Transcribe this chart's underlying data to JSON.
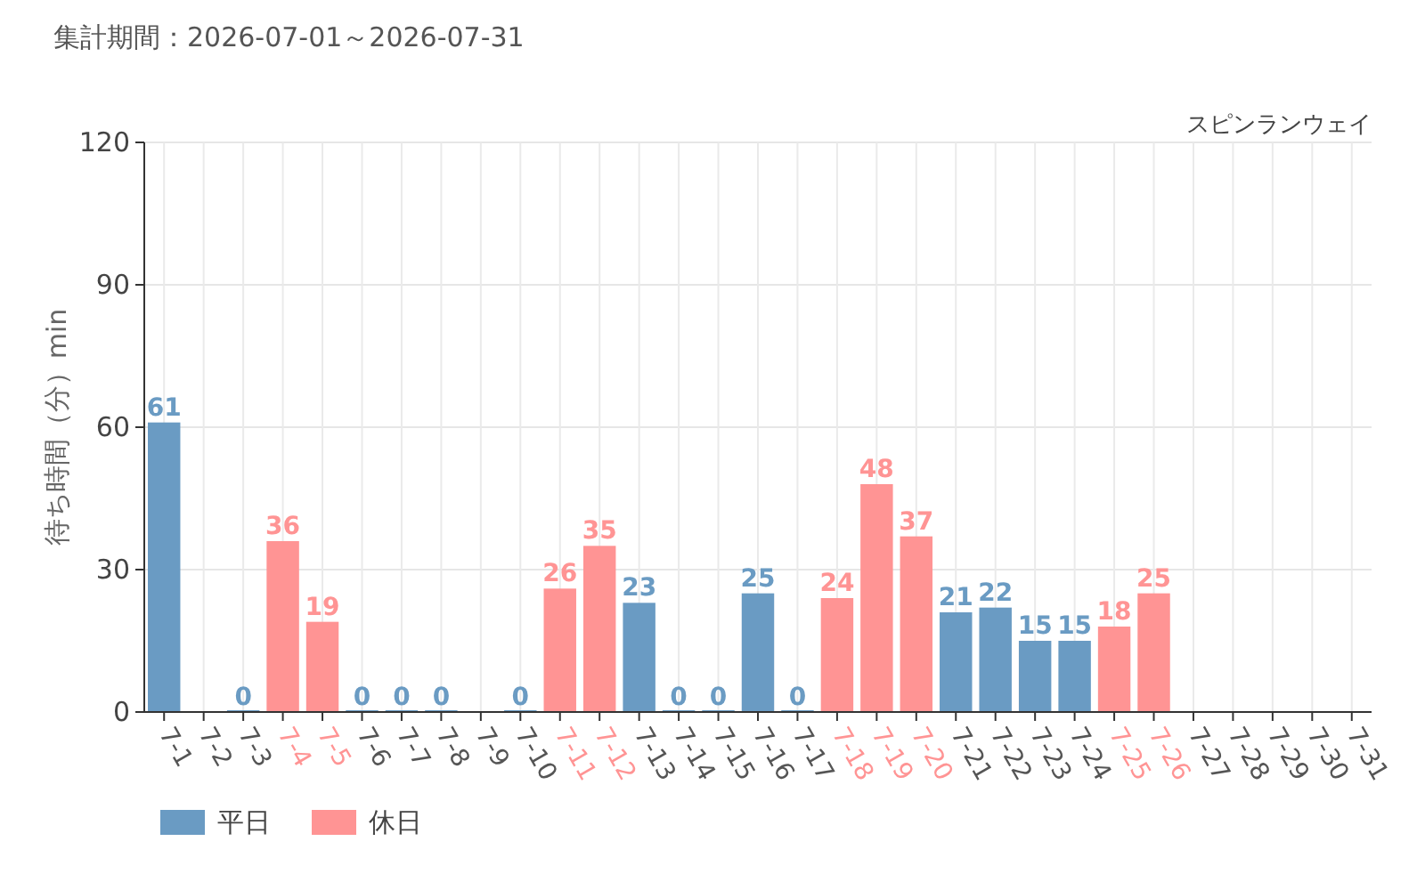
{
  "chart_data": {
    "type": "bar",
    "title": "集計期間：2026-07-01～2026-07-31",
    "subtitle": "スピンランウェイ",
    "ylabel": "待ち時間（分）min",
    "categories": [
      "7-1",
      "7-2",
      "7-3",
      "7-4",
      "7-5",
      "7-6",
      "7-7",
      "7-8",
      "7-9",
      "7-10",
      "7-11",
      "7-12",
      "7-13",
      "7-14",
      "7-15",
      "7-16",
      "7-17",
      "7-18",
      "7-19",
      "7-20",
      "7-21",
      "7-22",
      "7-23",
      "7-24",
      "7-25",
      "7-26",
      "7-27",
      "7-28",
      "7-29",
      "7-30",
      "7-31"
    ],
    "series": [
      {
        "name": "平日",
        "color": "#6a9bc3",
        "values": [
          61,
          null,
          0,
          null,
          null,
          0,
          0,
          0,
          null,
          0,
          null,
          null,
          23,
          0,
          0,
          25,
          0,
          null,
          null,
          null,
          21,
          22,
          15,
          15,
          null,
          null,
          null,
          null,
          null,
          null,
          null
        ]
      },
      {
        "name": "休日",
        "color": "#ff9494",
        "values": [
          null,
          null,
          null,
          36,
          19,
          null,
          null,
          null,
          null,
          null,
          26,
          35,
          null,
          null,
          null,
          null,
          null,
          24,
          48,
          37,
          null,
          null,
          null,
          null,
          18,
          25,
          null,
          null,
          null,
          null,
          null
        ]
      }
    ],
    "ylim": [
      0,
      120
    ],
    "yticks": [
      0,
      30,
      60,
      90,
      120
    ],
    "grid": true,
    "data_labels": true,
    "legend": "bottom left"
  }
}
